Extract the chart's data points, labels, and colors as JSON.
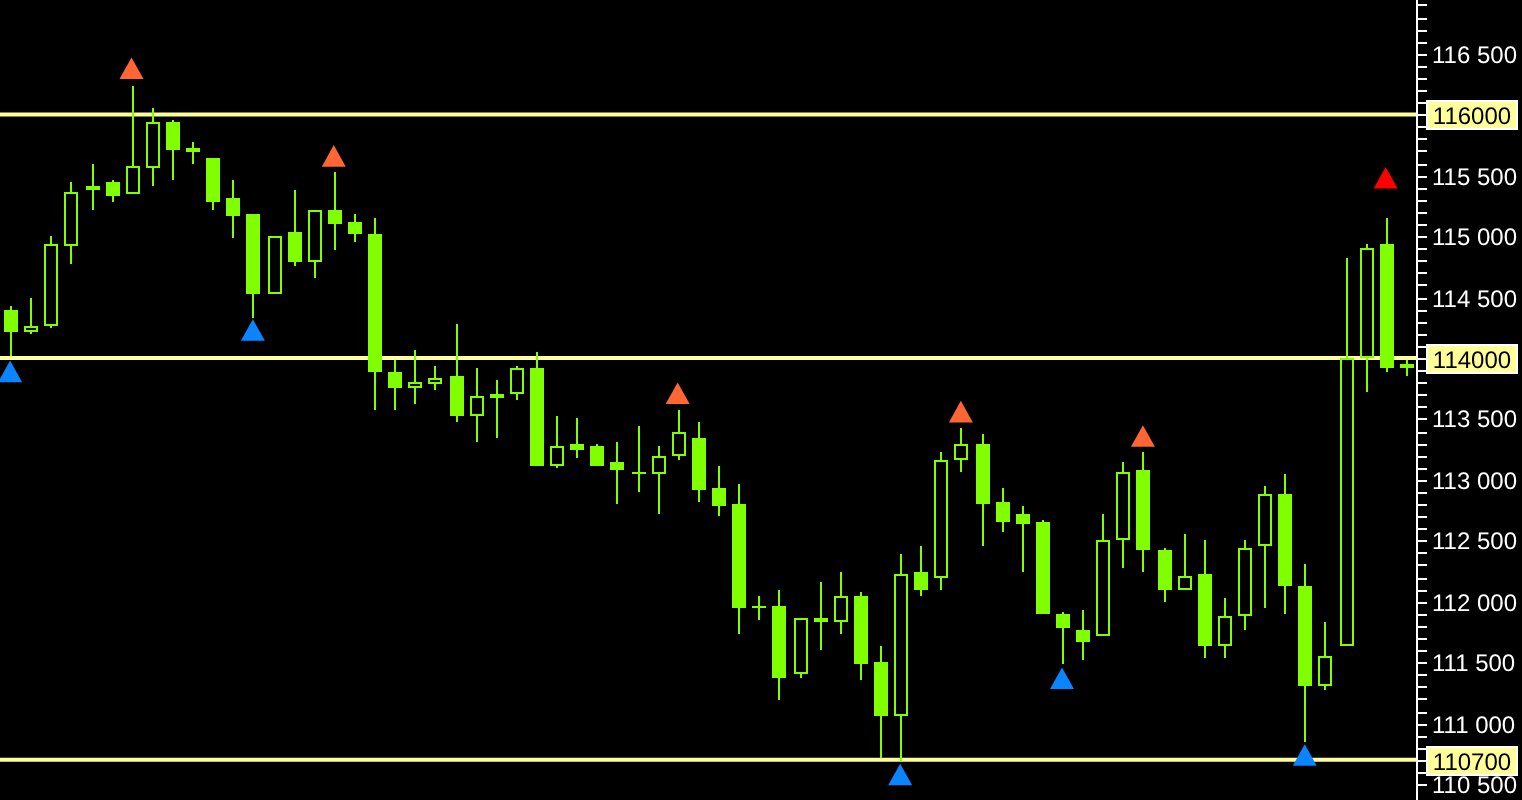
{
  "chart_data": {
    "type": "candlestick",
    "categories": [
      null,
      null,
      null,
      null,
      null,
      null,
      null,
      null,
      null,
      null,
      null,
      null,
      null,
      null,
      null,
      null,
      null,
      null,
      null,
      null,
      null,
      null,
      null,
      null,
      null,
      null,
      null,
      null,
      null,
      null,
      null,
      null,
      null,
      null,
      null,
      null,
      null,
      null,
      null,
      null,
      null,
      null,
      null,
      null,
      null,
      null,
      null,
      null,
      null,
      null,
      null,
      null,
      null,
      null,
      null,
      null,
      null,
      null,
      null,
      null,
      null,
      null,
      null,
      null,
      null,
      null,
      null,
      null,
      null,
      null
    ],
    "color": "#7fff00",
    "ohlc": [
      [
        114400,
        114420,
        114010,
        114220
      ],
      [
        114220,
        114500,
        114200,
        114270
      ],
      [
        114270,
        115000,
        114240,
        114930
      ],
      [
        114920,
        115440,
        114780,
        115370
      ],
      [
        115380,
        115600,
        115220,
        115420
      ],
      [
        115440,
        115460,
        115280,
        115330
      ],
      [
        115350,
        116240,
        115340,
        115570
      ],
      [
        115560,
        116060,
        115410,
        115930
      ],
      [
        115930,
        115960,
        115460,
        115710
      ],
      [
        115690,
        115770,
        115600,
        115730
      ],
      [
        115640,
        115640,
        115220,
        115280
      ],
      [
        115310,
        115460,
        114980,
        115160
      ],
      [
        115180,
        115190,
        114330,
        114530
      ],
      [
        114530,
        115010,
        114520,
        115010
      ],
      [
        115030,
        115380,
        114760,
        114790
      ],
      [
        114790,
        115210,
        114650,
        115210
      ],
      [
        115210,
        115520,
        114890,
        115100
      ],
      [
        115120,
        115180,
        114950,
        115020
      ],
      [
        115020,
        115150,
        113570,
        113880
      ],
      [
        113890,
        113990,
        113570,
        113750
      ],
      [
        113750,
        114070,
        113620,
        113810
      ],
      [
        113780,
        113940,
        113730,
        113840
      ],
      [
        113860,
        114280,
        113470,
        113520
      ],
      [
        113520,
        113910,
        113310,
        113690
      ],
      [
        113670,
        113820,
        113350,
        113710
      ],
      [
        113700,
        113940,
        113650,
        113920
      ],
      [
        113920,
        114050,
        113110,
        113110
      ],
      [
        113110,
        113520,
        113090,
        113280
      ],
      [
        113290,
        113500,
        113180,
        113240
      ],
      [
        113270,
        113290,
        113110,
        113110
      ],
      [
        113140,
        113310,
        112800,
        113080
      ],
      [
        113070,
        113440,
        112900,
        113070
      ],
      [
        113050,
        113270,
        112720,
        113200
      ],
      [
        113190,
        113570,
        113160,
        113400
      ],
      [
        113350,
        113470,
        112820,
        112910
      ],
      [
        112930,
        113110,
        112700,
        112780
      ],
      [
        112800,
        112960,
        111740,
        111950
      ],
      [
        111970,
        112050,
        111850,
        111950
      ],
      [
        111970,
        112100,
        111190,
        111380
      ],
      [
        111400,
        111870,
        111380,
        111870
      ],
      [
        111870,
        112160,
        111600,
        111830
      ],
      [
        111830,
        112250,
        111740,
        112040
      ],
      [
        112050,
        112070,
        111350,
        111480
      ],
      [
        111500,
        111640,
        110720,
        111060
      ],
      [
        111060,
        112390,
        110690,
        112220
      ],
      [
        112250,
        112460,
        112050,
        112100
      ],
      [
        112190,
        113220,
        112090,
        113170
      ],
      [
        113160,
        113420,
        113060,
        113300
      ],
      [
        113290,
        113370,
        112460,
        112800
      ],
      [
        112820,
        112930,
        112570,
        112650
      ],
      [
        112720,
        112780,
        112250,
        112640
      ],
      [
        112650,
        112670,
        111890,
        111890
      ],
      [
        111900,
        111920,
        111480,
        111780
      ],
      [
        111770,
        111930,
        111520,
        111660
      ],
      [
        111710,
        112720,
        111710,
        112510
      ],
      [
        112510,
        113140,
        112280,
        113070
      ],
      [
        113080,
        113220,
        112240,
        112430
      ],
      [
        112420,
        112440,
        112000,
        112100
      ],
      [
        112100,
        112550,
        112090,
        112210
      ],
      [
        112230,
        112500,
        111530,
        111630
      ],
      [
        111630,
        112030,
        111530,
        111880
      ],
      [
        111880,
        112500,
        111760,
        112440
      ],
      [
        112450,
        112950,
        111940,
        112890
      ],
      [
        112890,
        113040,
        111890,
        112120
      ],
      [
        112130,
        112310,
        110840,
        111300
      ],
      [
        111300,
        111840,
        111270,
        111560
      ],
      [
        111630,
        114820,
        111630,
        114000
      ],
      [
        114000,
        114930,
        113720,
        114910
      ],
      [
        114940,
        115150,
        113890,
        113910
      ],
      [
        113910,
        113990,
        113850,
        113950
      ]
    ],
    "series": [
      {
        "type": "scatter",
        "marker": "triangle",
        "color": "#ff6633",
        "values": [
          null,
          null,
          null,
          null,
          null,
          null,
          116370,
          null,
          null,
          null,
          null,
          null,
          null,
          null,
          null,
          null,
          115650,
          null,
          null,
          null,
          null,
          null,
          null,
          null,
          null,
          null,
          null,
          null,
          null,
          null,
          null,
          null,
          null,
          113700,
          null,
          null,
          null,
          null,
          null,
          null,
          null,
          null,
          null,
          null,
          null,
          null,
          null,
          113550,
          null,
          null,
          null,
          null,
          null,
          null,
          null,
          null,
          113350,
          null,
          null,
          null,
          null,
          null,
          null,
          null,
          null,
          null,
          null,
          null,
          null,
          null
        ]
      },
      {
        "type": "scatter",
        "marker": "triangle",
        "color": "#0a84ff",
        "values": [
          113880,
          null,
          null,
          null,
          null,
          null,
          null,
          null,
          null,
          null,
          null,
          null,
          114220,
          null,
          null,
          null,
          null,
          null,
          null,
          null,
          null,
          null,
          null,
          null,
          null,
          null,
          null,
          null,
          null,
          null,
          null,
          null,
          null,
          null,
          null,
          null,
          null,
          null,
          null,
          null,
          null,
          null,
          null,
          null,
          110570,
          null,
          null,
          null,
          null,
          null,
          null,
          null,
          111360,
          null,
          null,
          null,
          null,
          null,
          null,
          null,
          null,
          null,
          null,
          null,
          110730,
          null,
          null,
          null,
          null,
          null
        ]
      },
      {
        "type": "scatter",
        "marker": "triangle",
        "color": "#ff0000",
        "values": [
          null,
          null,
          null,
          null,
          null,
          null,
          null,
          null,
          null,
          null,
          null,
          null,
          null,
          null,
          null,
          null,
          null,
          null,
          null,
          null,
          null,
          null,
          null,
          null,
          null,
          null,
          null,
          null,
          null,
          null,
          null,
          null,
          null,
          null,
          null,
          null,
          null,
          null,
          null,
          null,
          null,
          null,
          null,
          null,
          null,
          null,
          null,
          null,
          null,
          null,
          null,
          null,
          null,
          null,
          null,
          null,
          null,
          null,
          null,
          null,
          null,
          null,
          null,
          null,
          null,
          null,
          null,
          null,
          115470,
          null
        ]
      }
    ],
    "ylim": [
      110370,
      116940
    ],
    "yticks": [
      {
        "value": 110500,
        "label": "110 500"
      },
      {
        "value": 110600,
        "label": null
      },
      {
        "value": 110700,
        "label": null
      },
      {
        "value": 110800,
        "label": null
      },
      {
        "value": 110900,
        "label": null
      },
      {
        "value": 111000,
        "label": "111 000"
      },
      {
        "value": 111100,
        "label": null
      },
      {
        "value": 111200,
        "label": null
      },
      {
        "value": 111300,
        "label": null
      },
      {
        "value": 111400,
        "label": null
      },
      {
        "value": 111500,
        "label": "111 500"
      },
      {
        "value": 111600,
        "label": null
      },
      {
        "value": 111700,
        "label": null
      },
      {
        "value": 111800,
        "label": null
      },
      {
        "value": 111900,
        "label": null
      },
      {
        "value": 112000,
        "label": "112 000"
      },
      {
        "value": 112100,
        "label": null
      },
      {
        "value": 112200,
        "label": null
      },
      {
        "value": 112300,
        "label": null
      },
      {
        "value": 112400,
        "label": null
      },
      {
        "value": 112500,
        "label": "112 500"
      },
      {
        "value": 112600,
        "label": null
      },
      {
        "value": 112700,
        "label": null
      },
      {
        "value": 112800,
        "label": null
      },
      {
        "value": 112900,
        "label": null
      },
      {
        "value": 113000,
        "label": "113 000"
      },
      {
        "value": 113100,
        "label": null
      },
      {
        "value": 113200,
        "label": null
      },
      {
        "value": 113300,
        "label": null
      },
      {
        "value": 113400,
        "label": null
      },
      {
        "value": 113500,
        "label": "113 500"
      },
      {
        "value": 113600,
        "label": null
      },
      {
        "value": 113700,
        "label": null
      },
      {
        "value": 113800,
        "label": null
      },
      {
        "value": 113900,
        "label": null
      },
      {
        "value": 114000,
        "label": null
      },
      {
        "value": 114100,
        "label": null
      },
      {
        "value": 114200,
        "label": null
      },
      {
        "value": 114300,
        "label": null
      },
      {
        "value": 114400,
        "label": null
      },
      {
        "value": 114500,
        "label": "114 500"
      },
      {
        "value": 114600,
        "label": null
      },
      {
        "value": 114700,
        "label": null
      },
      {
        "value": 114800,
        "label": null
      },
      {
        "value": 114900,
        "label": null
      },
      {
        "value": 115000,
        "label": "115 000"
      },
      {
        "value": 115100,
        "label": null
      },
      {
        "value": 115200,
        "label": null
      },
      {
        "value": 115300,
        "label": null
      },
      {
        "value": 115400,
        "label": null
      },
      {
        "value": 115500,
        "label": "115 500"
      },
      {
        "value": 115600,
        "label": null
      },
      {
        "value": 115700,
        "label": null
      },
      {
        "value": 115800,
        "label": null
      },
      {
        "value": 115900,
        "label": null
      },
      {
        "value": 116000,
        "label": null
      },
      {
        "value": 116100,
        "label": null
      },
      {
        "value": 116200,
        "label": null
      },
      {
        "value": 116300,
        "label": null
      },
      {
        "value": 116400,
        "label": null
      },
      {
        "value": 116500,
        "label": "116 500"
      },
      {
        "value": 116600,
        "label": null
      },
      {
        "value": 116700,
        "label": null
      },
      {
        "value": 116800,
        "label": null
      },
      {
        "value": 116900,
        "label": null
      }
    ],
    "tick_labels": "y",
    "ref_lines": [
      {
        "axis": "y",
        "value": 116000,
        "label": "116000",
        "color": "#ffff99"
      },
      {
        "axis": "y",
        "value": 114000,
        "label": "114000",
        "color": "#ffff99"
      },
      {
        "axis": "y",
        "value": 110700,
        "label": "110700",
        "color": "#ffff99"
      }
    ]
  }
}
